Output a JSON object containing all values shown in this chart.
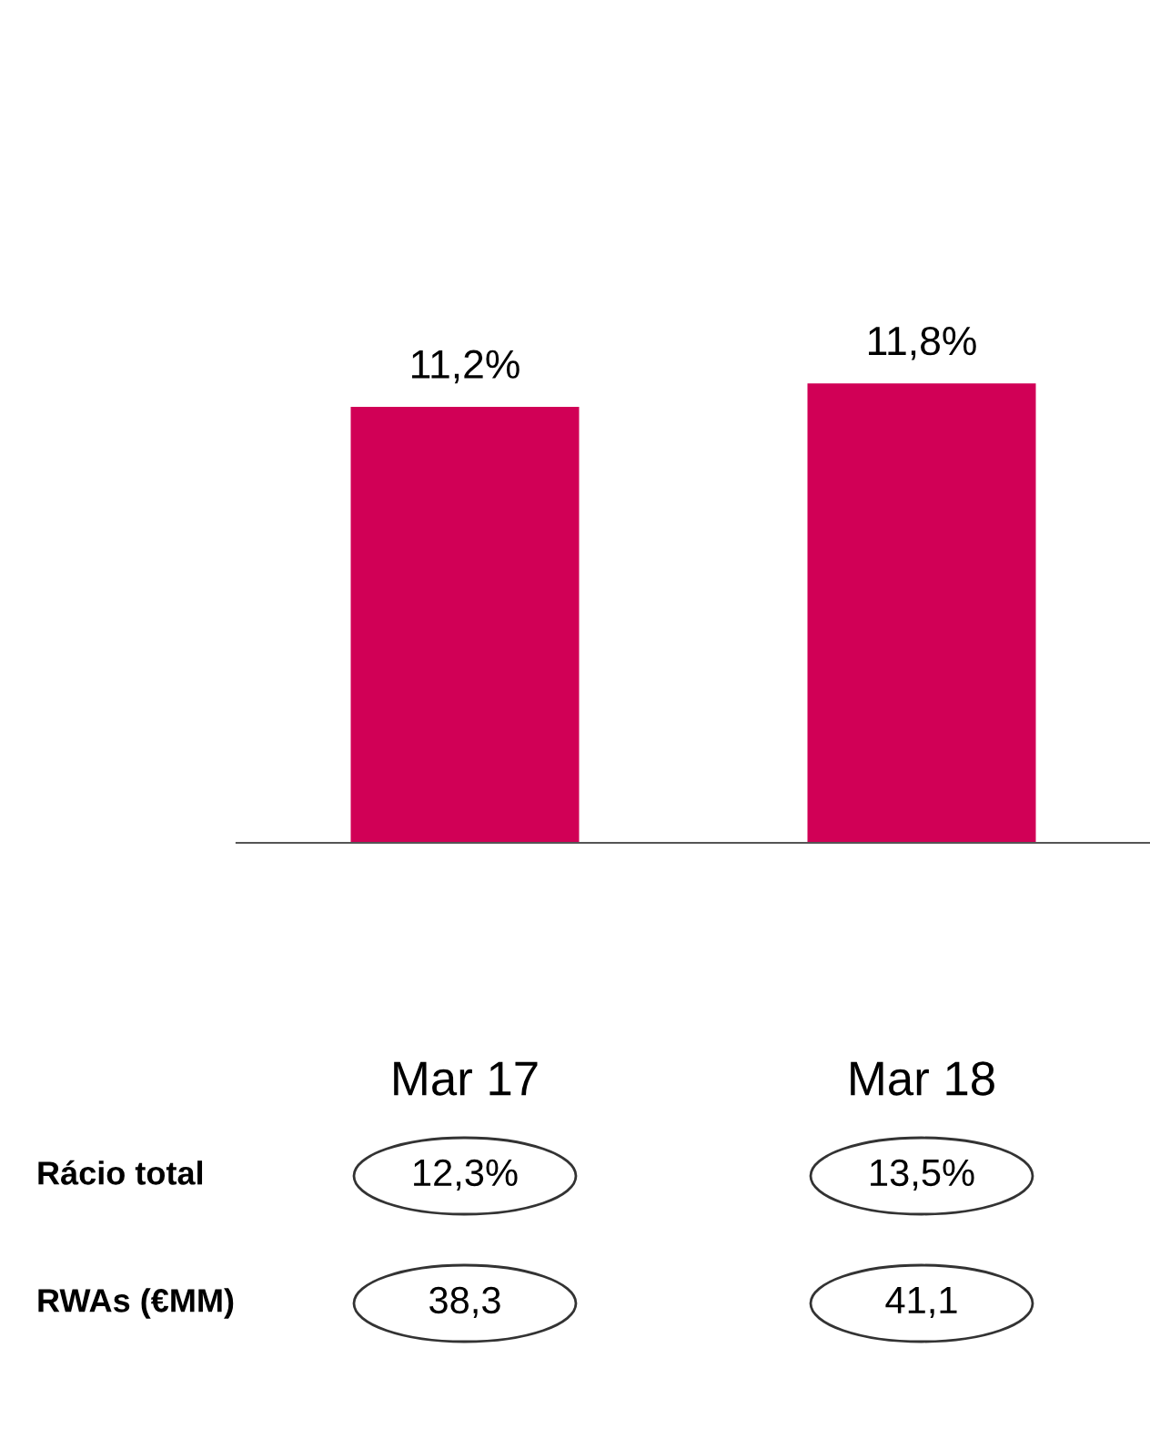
{
  "chart_data": {
    "type": "bar",
    "categories": [
      "Mar 17",
      "Mar 18"
    ],
    "values": [
      11.2,
      11.8
    ],
    "value_labels": [
      "11,2%",
      "11,8%"
    ],
    "color": "#d10056",
    "grid": false,
    "legend": false,
    "annotations": [
      "Rácio total",
      "12,3%",
      "13,5%",
      "RWAs (€MM)",
      "38,3",
      "41,1"
    ]
  }
}
